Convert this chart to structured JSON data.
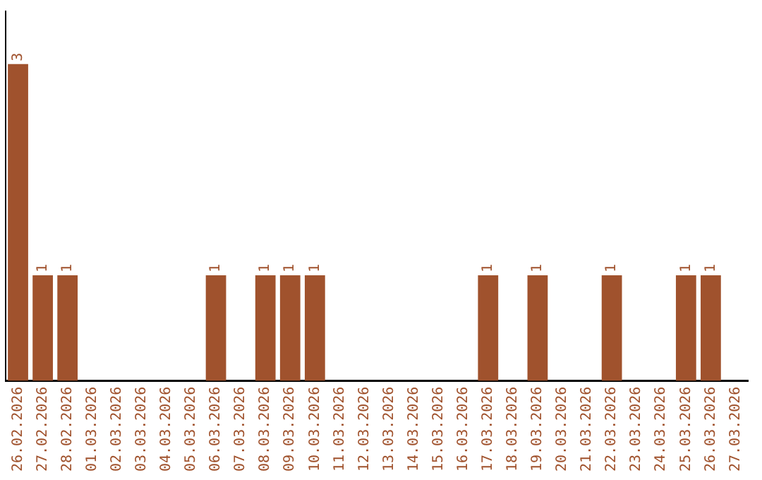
{
  "chart_data": {
    "type": "bar",
    "categories": [
      "26.02.2026",
      "27.02.2026",
      "28.02.2026",
      "01.03.2026",
      "02.03.2026",
      "03.03.2026",
      "04.03.2026",
      "05.03.2026",
      "06.03.2026",
      "07.03.2026",
      "08.03.2026",
      "09.03.2026",
      "10.03.2026",
      "11.03.2026",
      "12.03.2026",
      "13.03.2026",
      "14.03.2026",
      "15.03.2026",
      "16.03.2026",
      "17.03.2026",
      "18.03.2026",
      "19.03.2026",
      "20.03.2026",
      "21.03.2026",
      "22.03.2026",
      "23.03.2026",
      "24.03.2026",
      "25.03.2026",
      "26.03.2026",
      "27.03.2026"
    ],
    "values": [
      3,
      1,
      1,
      null,
      null,
      null,
      null,
      null,
      1,
      null,
      1,
      1,
      1,
      null,
      null,
      null,
      null,
      null,
      null,
      1,
      null,
      1,
      null,
      null,
      1,
      null,
      null,
      1,
      1,
      null
    ],
    "color": "#a0522d",
    "data_labels": true,
    "tick_labels": "x",
    "grid": false,
    "legend": false
  }
}
